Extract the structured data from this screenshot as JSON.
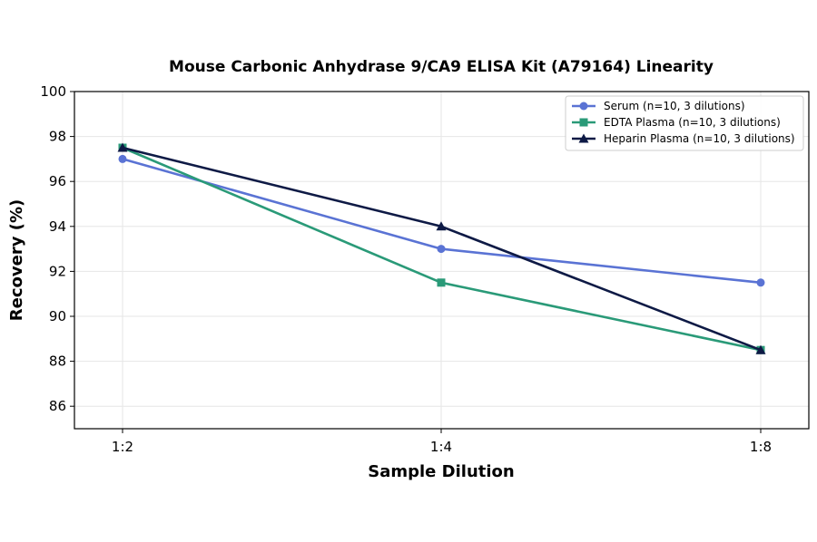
{
  "chart_data": {
    "type": "line",
    "title": "Mouse Carbonic Anhydrase 9/CA9 ELISA Kit (A79164) Linearity",
    "xlabel": "Sample Dilution",
    "ylabel": "Recovery (%)",
    "categories": [
      "1:2",
      "1:4",
      "1:8"
    ],
    "ylim": [
      85,
      100
    ],
    "yticks": [
      86,
      88,
      90,
      92,
      94,
      96,
      98,
      100
    ],
    "grid": true,
    "legend_position": "top-right",
    "series": [
      {
        "name": "Serum (n=10, 3 dilutions)",
        "values": [
          97.0,
          93.0,
          91.5
        ],
        "color": "#5a73d4",
        "marker": "circle"
      },
      {
        "name": "EDTA Plasma (n=10, 3 dilutions)",
        "values": [
          97.5,
          91.5,
          88.5
        ],
        "color": "#2a9a78",
        "marker": "square"
      },
      {
        "name": "Heparin Plasma (n=10, 3 dilutions)",
        "values": [
          97.5,
          94.0,
          88.5
        ],
        "color": "#0e1a45",
        "marker": "triangle"
      }
    ]
  }
}
